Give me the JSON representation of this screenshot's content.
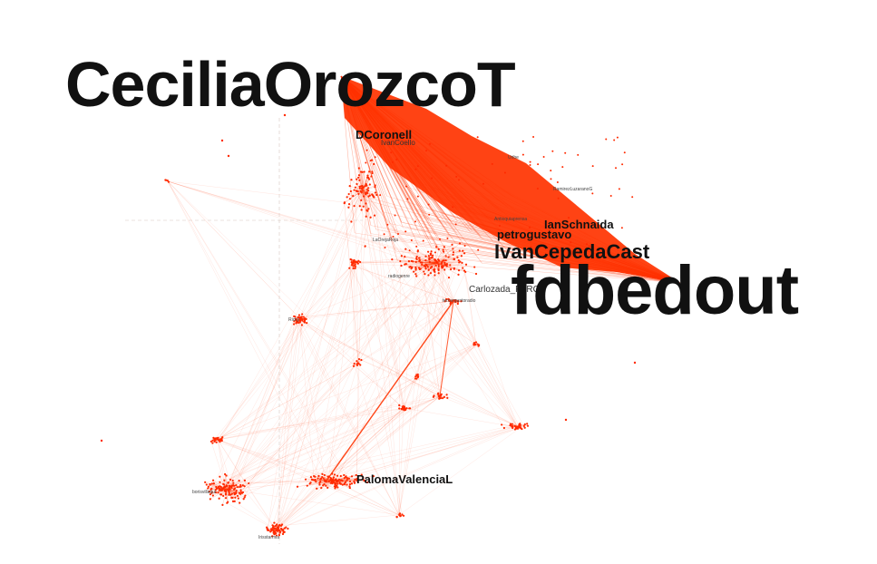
{
  "graph": {
    "edge_color": "#ff3300",
    "node_color": "#ff2a00",
    "background": "#ffffff",
    "labels": {
      "cecilia": "CeciliaOrozcoT",
      "fdbedout": "fdbedout",
      "ivan": "IvanCepedaCast",
      "dcoronell": "DCoronell",
      "ivancoello": "IvanCoello",
      "petrogustavo": "petrogustavo",
      "ianschnaida": "IanSchnaida",
      "paloma": "PalomaValenciaL",
      "carlozada": "Carlozada_FARC",
      "uribe": "Uribe",
      "ramirezluzarano": "RamirezLuzaranoG",
      "laoreja": "LaOrejaRoja",
      "antioquia": "Antioquiaprensa",
      "radio": "radiogenre",
      "tercer": "tercerpuntoradio",
      "ricky": "Ricky",
      "boris": "borisvillaqui",
      "iriss": "Irisstarmia"
    }
  }
}
